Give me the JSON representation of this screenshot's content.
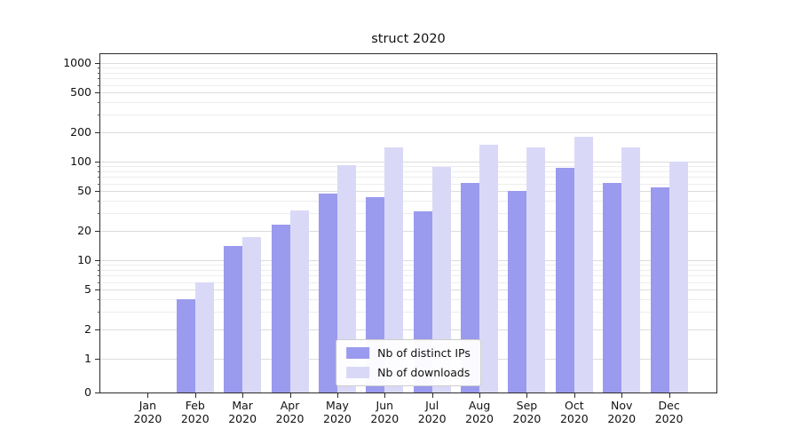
{
  "title": "struct 2020",
  "legend": {
    "items": [
      {
        "label": "Nb of distinct IPs",
        "color": "#9a9aee"
      },
      {
        "label": "Nb of downloads",
        "color": "#d9d9f7"
      }
    ]
  },
  "chart_data": {
    "type": "bar",
    "title": "struct 2020",
    "categories": [
      "Jan 2020",
      "Feb 2020",
      "Mar 2020",
      "Apr 2020",
      "May 2020",
      "Jun 2020",
      "Jul 2020",
      "Aug 2020",
      "Sep 2020",
      "Oct 2020",
      "Nov 2020",
      "Dec 2020"
    ],
    "series": [
      {
        "name": "Nb of distinct IPs",
        "color": "#9a9aee",
        "values": [
          0,
          4,
          14,
          23,
          47,
          44,
          31,
          61,
          50,
          86,
          61,
          55
        ]
      },
      {
        "name": "Nb of downloads",
        "color": "#d9d9f7",
        "values": [
          0,
          6,
          17,
          32,
          92,
          140,
          89,
          148,
          140,
          180,
          140,
          100
        ]
      }
    ],
    "yscale": "symlog",
    "y_ticks": [
      0,
      1,
      2,
      5,
      10,
      20,
      50,
      100,
      200,
      500,
      1000
    ],
    "ylim": [
      0,
      1300
    ],
    "grid": true,
    "legend_position": "lower center"
  }
}
